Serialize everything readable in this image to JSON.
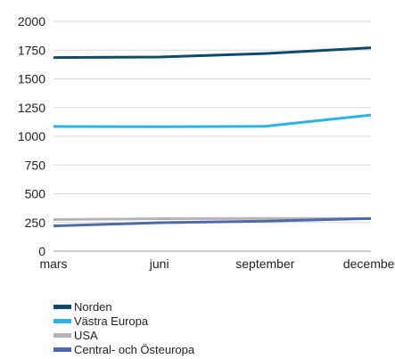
{
  "chart_data": {
    "type": "line",
    "categories": [
      "mars",
      "juni",
      "september",
      "december"
    ],
    "series": [
      {
        "name": "Norden",
        "color": "#0f4a6a",
        "values": [
          1685,
          1690,
          1720,
          1770
        ]
      },
      {
        "name": "Västra Europa",
        "color": "#2ab3e3",
        "values": [
          1085,
          1083,
          1087,
          1185
        ]
      },
      {
        "name": "USA",
        "color": "#b4b4b4",
        "values": [
          275,
          283,
          285,
          283
        ]
      },
      {
        "name": "Central- och Östeuropa",
        "color": "#4f69ad",
        "values": [
          220,
          248,
          262,
          285
        ]
      }
    ],
    "y_ticks": [
      "0",
      "250",
      "500",
      "750",
      "1000",
      "1250",
      "1500",
      "1750",
      "2000"
    ],
    "ylim": [
      0,
      2000
    ],
    "title": "",
    "xlabel": "",
    "ylabel": "",
    "grid": true,
    "legend_placement": "bottom"
  }
}
